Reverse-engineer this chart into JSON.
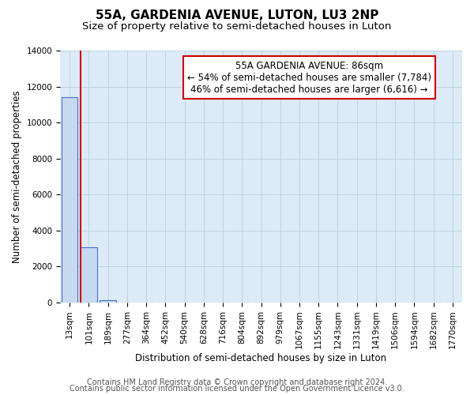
{
  "title": "55A, GARDENIA AVENUE, LUTON, LU3 2NP",
  "subtitle": "Size of property relative to semi-detached houses in Luton",
  "xlabel": "Distribution of semi-detached houses by size in Luton",
  "ylabel": "Number of semi-detached properties",
  "bin_labels": [
    "13sqm",
    "101sqm",
    "189sqm",
    "277sqm",
    "364sqm",
    "452sqm",
    "540sqm",
    "628sqm",
    "716sqm",
    "804sqm",
    "892sqm",
    "979sqm",
    "1067sqm",
    "1155sqm",
    "1243sqm",
    "1331sqm",
    "1419sqm",
    "1506sqm",
    "1594sqm",
    "1682sqm",
    "1770sqm"
  ],
  "bar_values": [
    11400,
    3050,
    130,
    0,
    0,
    0,
    0,
    0,
    0,
    0,
    0,
    0,
    0,
    0,
    0,
    0,
    0,
    0,
    0,
    0,
    0
  ],
  "bar_color": "#c6d9f1",
  "bar_edge_color": "#4472c4",
  "ylim": [
    0,
    14000
  ],
  "yticks": [
    0,
    2000,
    4000,
    6000,
    8000,
    10000,
    12000,
    14000
  ],
  "property_line_color": "#cc0000",
  "annotation_box_text": "55A GARDENIA AVENUE: 86sqm\n← 54% of semi-detached houses are smaller (7,784)\n46% of semi-detached houses are larger (6,616) →",
  "annotation_box_color": "#ffffff",
  "annotation_box_edge_color": "#cc0000",
  "footer_line1": "Contains HM Land Registry data © Crown copyright and database right 2024.",
  "footer_line2": "Contains public sector information licensed under the Open Government Licence v3.0.",
  "bg_color": "#ddeaf8",
  "grid_color": "#b8cfe0",
  "title_fontsize": 11,
  "subtitle_fontsize": 9.5,
  "axis_label_fontsize": 8.5,
  "tick_fontsize": 7.5,
  "annotation_fontsize": 8.5,
  "footer_fontsize": 7
}
